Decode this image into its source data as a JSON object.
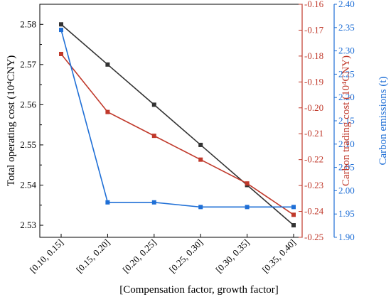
{
  "chart_data": {
    "type": "line",
    "xlabel": "[Compensation factor, growth factor]",
    "categories": [
      "[0.10, 0.15]",
      "[0.15, 0.20]",
      "[0.20, 0.25]",
      "[0.25, 0.30]",
      "[0.30, 0.35]",
      "[0.35, 0.40]"
    ],
    "axes": {
      "left": {
        "label": "Total operating cost (10⁴CNY)",
        "ylim": [
          2.527,
          2.585
        ],
        "ticks": [
          "2.53",
          "2.54",
          "2.55",
          "2.56",
          "2.57",
          "2.58"
        ],
        "color": "#000000"
      },
      "right1": {
        "label": "Carbon trading cost (10⁴CNY)",
        "ylim": [
          -0.25,
          -0.16
        ],
        "ticks": [
          "-0.25",
          "-0.24",
          "-0.23",
          "-0.22",
          "-0.21",
          "-0.20",
          "-0.19",
          "-0.18",
          "-0.17",
          "-0.16"
        ],
        "color": "#c0392b"
      },
      "right2": {
        "label": "Carbon emissions (t)",
        "ylim": [
          1.9,
          2.4
        ],
        "ticks": [
          "1.90",
          "1.95",
          "2.00",
          "2.05",
          "2.10",
          "2.15",
          "2.20",
          "2.25",
          "2.30",
          "2.35",
          "2.40"
        ],
        "color": "#1f6fd6"
      }
    },
    "series": [
      {
        "axis": "left",
        "color": "#333333",
        "values": [
          2.58,
          2.57,
          2.56,
          2.55,
          2.54,
          2.53
        ]
      },
      {
        "axis": "right1",
        "color": "#c0392b",
        "values": [
          -0.1792,
          -0.2016,
          -0.2108,
          -0.22,
          -0.2292,
          -0.2413
        ]
      },
      {
        "axis": "right2",
        "color": "#1f6fd6",
        "values": [
          2.345,
          1.975,
          1.975,
          1.965,
          1.965,
          1.965
        ]
      }
    ]
  }
}
